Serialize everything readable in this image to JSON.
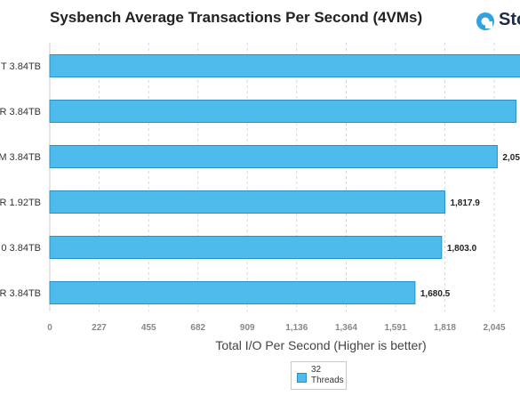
{
  "header": {
    "title": "Sysbench Average Transactions Per Second (4VMs)",
    "logo_text": "Sto"
  },
  "legend": {
    "label": "32 Threads"
  },
  "chart_data": {
    "type": "bar",
    "orientation": "horizontal",
    "title": "Sysbench Average Transactions Per Second (4VMs)",
    "xlabel": "Total I/O Per Second (Higher is better)",
    "ylabel": "",
    "xlim": [
      0,
      2160
    ],
    "x_ticks": [
      0,
      227,
      455,
      682,
      909,
      1136,
      1364,
      1591,
      1818,
      2045
    ],
    "x_tick_labels": [
      "0",
      "227",
      "455",
      "682",
      "909",
      "1,136",
      "1,364",
      "1,591",
      "1,818",
      "2,045"
    ],
    "categories": [
      "T 3.84TB",
      "R 3.84TB",
      "M 3.84TB",
      "R 1.92TB",
      "0 3.84TB",
      "R 3.84TB"
    ],
    "series": [
      {
        "name": "32 Threads",
        "color": "#4dbbec",
        "values": [
          2230,
          2145,
          2059,
          1817.9,
          1803.0,
          1680.5
        ],
        "labels": [
          "",
          "2",
          "2,05",
          "1,817.9",
          "1,803.0",
          "1,680.5"
        ]
      }
    ],
    "grid": "vertical-dashed",
    "legend_position": "bottom-center"
  }
}
